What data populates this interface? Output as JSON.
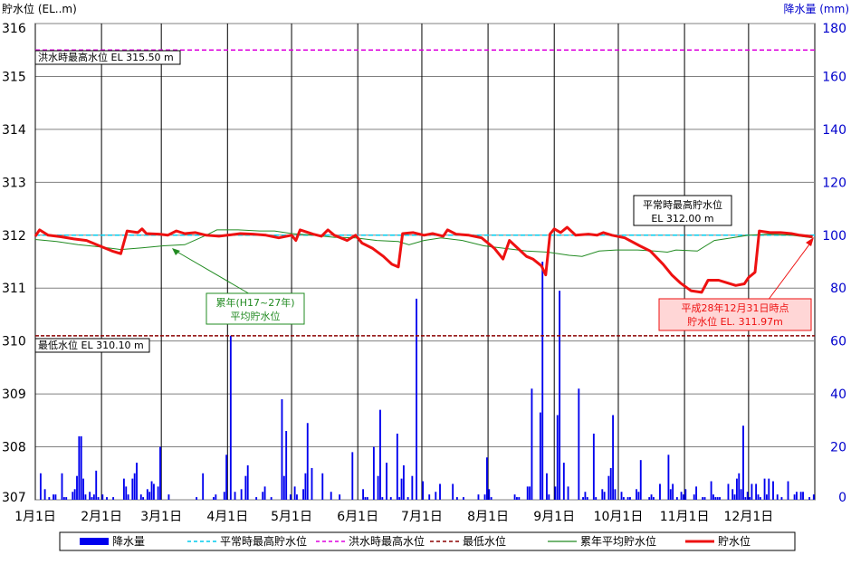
{
  "chart_data": {
    "type": "line",
    "y_left": {
      "label": "貯水位 (EL..m)",
      "min": 307,
      "max": 316,
      "ticks": [
        307,
        308,
        309,
        310,
        311,
        312,
        313,
        314,
        315,
        316
      ]
    },
    "y_right": {
      "label": "降水量 (mm)",
      "min": 0,
      "max": 180,
      "ticks": [
        0,
        20,
        40,
        60,
        80,
        100,
        120,
        140,
        160,
        180
      ]
    },
    "x_axis": {
      "days": 365,
      "tick_labels": [
        "1月1日",
        "2月1日",
        "3月1日",
        "4月1日",
        "5月1日",
        "6月1日",
        "7月1日",
        "8月1日",
        "9月1日",
        "10月1日",
        "11月1日",
        "12月1日"
      ],
      "tick_days": [
        0,
        31,
        59,
        90,
        120,
        151,
        181,
        212,
        243,
        273,
        304,
        334
      ]
    },
    "grid": true,
    "colors": {
      "rain": "#0000ee",
      "normal_max": "#00ccee",
      "flood_max": "#dd00dd",
      "min_level": "#8b0000",
      "avg_level": "#228b22",
      "level": "#ee1111",
      "right_axis": "#0000cc"
    },
    "reference_lines": {
      "normal_max": {
        "value": 312.0,
        "label_line1": "平常時最高貯水位",
        "label_line2": "EL 312.00 m"
      },
      "flood_max": {
        "value": 315.5,
        "label": "洪水時最高水位 EL 315.50 m"
      },
      "min_level": {
        "value": 310.1,
        "label": "最低水位 EL 310.10 m"
      }
    },
    "annotations": {
      "avg": {
        "line1": "累年(H17~27年)",
        "line2": "平均貯水位"
      },
      "current": {
        "line1": "平成28年12月31日時点",
        "line2": "貯水位 EL. 311.97m"
      }
    },
    "legend": {
      "position": "bottom",
      "items": [
        {
          "label": "降水量",
          "kind": "bar",
          "color": "#0000ee"
        },
        {
          "label": "平常時最高貯水位",
          "kind": "dash",
          "color": "#00ccee"
        },
        {
          "label": "洪水時最高水位",
          "kind": "dash",
          "color": "#dd00dd"
        },
        {
          "label": "最低水位",
          "kind": "dash",
          "color": "#8b0000"
        },
        {
          "label": "累年平均貯水位",
          "kind": "line",
          "color": "#228b22"
        },
        {
          "label": "貯水位",
          "kind": "thick",
          "color": "#ee1111"
        }
      ]
    },
    "series": [
      {
        "name": "貯水位",
        "points": [
          [
            0,
            311.98
          ],
          [
            2,
            312.1
          ],
          [
            6,
            312.0
          ],
          [
            12,
            311.97
          ],
          [
            18,
            311.93
          ],
          [
            24,
            311.9
          ],
          [
            30,
            311.8
          ],
          [
            36,
            311.7
          ],
          [
            40,
            311.65
          ],
          [
            43,
            312.08
          ],
          [
            48,
            312.05
          ],
          [
            50,
            312.12
          ],
          [
            52,
            312.03
          ],
          [
            58,
            312.02
          ],
          [
            62,
            312.0
          ],
          [
            66,
            312.08
          ],
          [
            70,
            312.03
          ],
          [
            75,
            312.05
          ],
          [
            80,
            312.0
          ],
          [
            86,
            311.98
          ],
          [
            90,
            312.0
          ],
          [
            96,
            312.03
          ],
          [
            102,
            312.02
          ],
          [
            108,
            312.0
          ],
          [
            114,
            311.95
          ],
          [
            120,
            312.0
          ],
          [
            122,
            311.9
          ],
          [
            124,
            312.1
          ],
          [
            130,
            312.02
          ],
          [
            134,
            311.98
          ],
          [
            137,
            312.1
          ],
          [
            140,
            312.0
          ],
          [
            146,
            311.9
          ],
          [
            150,
            312.0
          ],
          [
            153,
            311.85
          ],
          [
            158,
            311.75
          ],
          [
            163,
            311.6
          ],
          [
            167,
            311.45
          ],
          [
            170,
            311.4
          ],
          [
            172,
            312.03
          ],
          [
            177,
            312.05
          ],
          [
            182,
            312.0
          ],
          [
            186,
            312.03
          ],
          [
            191,
            311.98
          ],
          [
            193,
            312.1
          ],
          [
            197,
            312.02
          ],
          [
            203,
            312.0
          ],
          [
            209,
            311.95
          ],
          [
            215,
            311.75
          ],
          [
            219,
            311.55
          ],
          [
            222,
            311.9
          ],
          [
            226,
            311.75
          ],
          [
            230,
            311.6
          ],
          [
            233,
            311.55
          ],
          [
            237,
            311.42
          ],
          [
            239,
            311.25
          ],
          [
            241,
            312.02
          ],
          [
            243,
            312.12
          ],
          [
            246,
            312.05
          ],
          [
            249,
            312.15
          ],
          [
            253,
            312.0
          ],
          [
            259,
            312.02
          ],
          [
            263,
            312.0
          ],
          [
            266,
            312.05
          ],
          [
            270,
            312.0
          ],
          [
            276,
            311.95
          ],
          [
            283,
            311.8
          ],
          [
            288,
            311.7
          ],
          [
            294,
            311.45
          ],
          [
            298,
            311.25
          ],
          [
            302,
            311.1
          ],
          [
            307,
            310.95
          ],
          [
            312,
            310.92
          ],
          [
            315,
            311.15
          ],
          [
            320,
            311.15
          ],
          [
            324,
            311.1
          ],
          [
            328,
            311.05
          ],
          [
            332,
            311.08
          ],
          [
            334,
            311.2
          ],
          [
            337,
            311.3
          ],
          [
            339,
            312.08
          ],
          [
            344,
            312.05
          ],
          [
            349,
            312.05
          ],
          [
            354,
            312.03
          ],
          [
            358,
            312.0
          ],
          [
            362,
            311.98
          ],
          [
            364,
            311.97
          ]
        ]
      },
      {
        "name": "累年平均貯水位",
        "points": [
          [
            0,
            311.92
          ],
          [
            10,
            311.88
          ],
          [
            20,
            311.82
          ],
          [
            30,
            311.78
          ],
          [
            40,
            311.73
          ],
          [
            50,
            311.76
          ],
          [
            60,
            311.8
          ],
          [
            70,
            311.82
          ],
          [
            80,
            312.0
          ],
          [
            85,
            312.1
          ],
          [
            95,
            312.1
          ],
          [
            105,
            312.08
          ],
          [
            112,
            312.08
          ],
          [
            120,
            312.03
          ],
          [
            130,
            312.0
          ],
          [
            140,
            311.96
          ],
          [
            150,
            311.95
          ],
          [
            160,
            311.9
          ],
          [
            170,
            311.88
          ],
          [
            175,
            311.82
          ],
          [
            182,
            311.9
          ],
          [
            190,
            311.95
          ],
          [
            200,
            311.9
          ],
          [
            210,
            311.8
          ],
          [
            220,
            311.75
          ],
          [
            230,
            311.7
          ],
          [
            240,
            311.68
          ],
          [
            250,
            311.62
          ],
          [
            256,
            311.6
          ],
          [
            264,
            311.7
          ],
          [
            272,
            311.72
          ],
          [
            282,
            311.72
          ],
          [
            290,
            311.7
          ],
          [
            296,
            311.68
          ],
          [
            300,
            311.72
          ],
          [
            310,
            311.7
          ],
          [
            318,
            311.9
          ],
          [
            326,
            311.95
          ],
          [
            334,
            312.0
          ],
          [
            344,
            312.02
          ],
          [
            354,
            312.0
          ],
          [
            364,
            311.95
          ]
        ]
      }
    ],
    "precip": [
      [
        2,
        10
      ],
      [
        4,
        4
      ],
      [
        6,
        1
      ],
      [
        8,
        2
      ],
      [
        9,
        2
      ],
      [
        12,
        10
      ],
      [
        13,
        1
      ],
      [
        14,
        1
      ],
      [
        17,
        3
      ],
      [
        18,
        4
      ],
      [
        19,
        9
      ],
      [
        20,
        24
      ],
      [
        21,
        24
      ],
      [
        22,
        8
      ],
      [
        23,
        2
      ],
      [
        25,
        3
      ],
      [
        26,
        1
      ],
      [
        27,
        2
      ],
      [
        28,
        11
      ],
      [
        29,
        1
      ],
      [
        31,
        2
      ],
      [
        33,
        1
      ],
      [
        36,
        1
      ],
      [
        41,
        8
      ],
      [
        42,
        5
      ],
      [
        43,
        2
      ],
      [
        45,
        8
      ],
      [
        46,
        10
      ],
      [
        47,
        14
      ],
      [
        49,
        2
      ],
      [
        50,
        1
      ],
      [
        52,
        4
      ],
      [
        53,
        3
      ],
      [
        54,
        7
      ],
      [
        55,
        6
      ],
      [
        57,
        5
      ],
      [
        58,
        20
      ],
      [
        62,
        2
      ],
      [
        75,
        1
      ],
      [
        78,
        10
      ],
      [
        83,
        1
      ],
      [
        84,
        2
      ],
      [
        88,
        3
      ],
      [
        89,
        17
      ],
      [
        91,
        62
      ],
      [
        93,
        3
      ],
      [
        96,
        4
      ],
      [
        98,
        9
      ],
      [
        99,
        13
      ],
      [
        103,
        1
      ],
      [
        106,
        3
      ],
      [
        107,
        5
      ],
      [
        110,
        1
      ],
      [
        115,
        38
      ],
      [
        116,
        9
      ],
      [
        117,
        26
      ],
      [
        119,
        2
      ],
      [
        121,
        5
      ],
      [
        122,
        2
      ],
      [
        125,
        4
      ],
      [
        126,
        10
      ],
      [
        127,
        29
      ],
      [
        129,
        12
      ],
      [
        134,
        10
      ],
      [
        138,
        3
      ],
      [
        142,
        2
      ],
      [
        148,
        18
      ],
      [
        153,
        4
      ],
      [
        154,
        1
      ],
      [
        155,
        1
      ],
      [
        158,
        20
      ],
      [
        160,
        9
      ],
      [
        161,
        34
      ],
      [
        162,
        1
      ],
      [
        164,
        14
      ],
      [
        166,
        1
      ],
      [
        169,
        25
      ],
      [
        170,
        1
      ],
      [
        171,
        8
      ],
      [
        172,
        13
      ],
      [
        174,
        1
      ],
      [
        176,
        9
      ],
      [
        178,
        76
      ],
      [
        181,
        7
      ],
      [
        184,
        2
      ],
      [
        187,
        3
      ],
      [
        189,
        6
      ],
      [
        195,
        6
      ],
      [
        197,
        1
      ],
      [
        200,
        1
      ],
      [
        207,
        2
      ],
      [
        210,
        2
      ],
      [
        211,
        16
      ],
      [
        212,
        4
      ],
      [
        213,
        1
      ],
      [
        224,
        2
      ],
      [
        225,
        1
      ],
      [
        226,
        1
      ],
      [
        230,
        5
      ],
      [
        231,
        5
      ],
      [
        232,
        42
      ],
      [
        236,
        33
      ],
      [
        237,
        90
      ],
      [
        239,
        10
      ],
      [
        240,
        2
      ],
      [
        243,
        5
      ],
      [
        244,
        32
      ],
      [
        245,
        79
      ],
      [
        247,
        14
      ],
      [
        249,
        5
      ],
      [
        254,
        42
      ],
      [
        256,
        1
      ],
      [
        257,
        3
      ],
      [
        258,
        1
      ],
      [
        261,
        25
      ],
      [
        262,
        1
      ],
      [
        265,
        4
      ],
      [
        266,
        3
      ],
      [
        268,
        9
      ],
      [
        269,
        12
      ],
      [
        270,
        32
      ],
      [
        271,
        4
      ],
      [
        274,
        3
      ],
      [
        275,
        1
      ],
      [
        277,
        1
      ],
      [
        278,
        1
      ],
      [
        281,
        4
      ],
      [
        282,
        3
      ],
      [
        283,
        15
      ],
      [
        287,
        1
      ],
      [
        288,
        2
      ],
      [
        289,
        1
      ],
      [
        292,
        6
      ],
      [
        296,
        17
      ],
      [
        297,
        4
      ],
      [
        298,
        6
      ],
      [
        300,
        1
      ],
      [
        302,
        3
      ],
      [
        303,
        2
      ],
      [
        304,
        4
      ],
      [
        308,
        2
      ],
      [
        309,
        5
      ],
      [
        312,
        1
      ],
      [
        313,
        1
      ],
      [
        316,
        7
      ],
      [
        317,
        2
      ],
      [
        318,
        1
      ],
      [
        319,
        1
      ],
      [
        320,
        1
      ],
      [
        324,
        6
      ],
      [
        326,
        4
      ],
      [
        327,
        2
      ],
      [
        328,
        8
      ],
      [
        329,
        10
      ],
      [
        330,
        4
      ],
      [
        331,
        28
      ],
      [
        332,
        1
      ],
      [
        333,
        3
      ],
      [
        334,
        1
      ],
      [
        335,
        6
      ],
      [
        337,
        6
      ],
      [
        338,
        2
      ],
      [
        339,
        1
      ],
      [
        341,
        8
      ],
      [
        342,
        2
      ],
      [
        343,
        8
      ],
      [
        345,
        7
      ],
      [
        347,
        2
      ],
      [
        349,
        1
      ],
      [
        352,
        7
      ],
      [
        355,
        2
      ],
      [
        356,
        3
      ],
      [
        358,
        3
      ],
      [
        359,
        3
      ],
      [
        362,
        1
      ],
      [
        364,
        2
      ]
    ]
  }
}
